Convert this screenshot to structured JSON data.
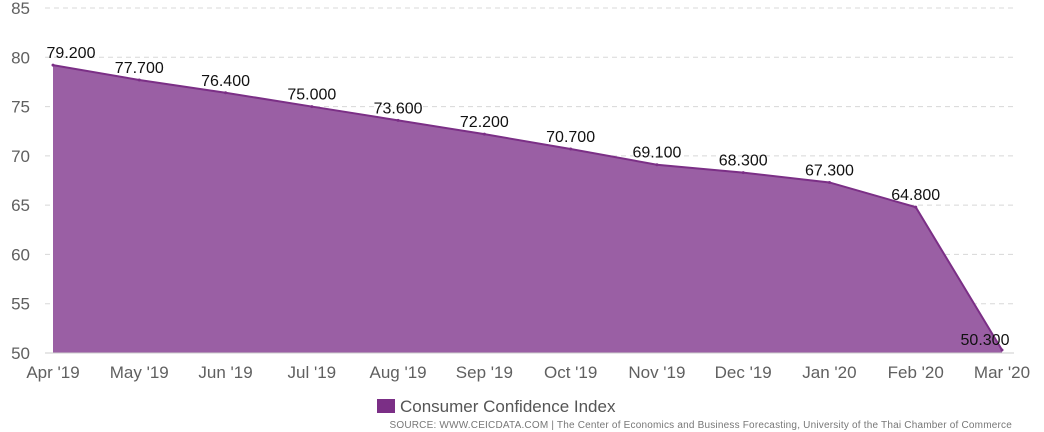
{
  "chart_data": {
    "type": "area",
    "categories": [
      "Apr '19",
      "May '19",
      "Jun '19",
      "Jul '19",
      "Aug '19",
      "Sep '19",
      "Oct '19",
      "Nov '19",
      "Dec '19",
      "Jan '20",
      "Feb '20",
      "Mar '20"
    ],
    "series": [
      {
        "name": "Consumer Confidence Index",
        "values": [
          79.2,
          77.7,
          76.4,
          75.0,
          73.6,
          72.2,
          70.7,
          69.1,
          68.3,
          67.3,
          64.8,
          50.3
        ],
        "labels": [
          "79.200",
          "77.700",
          "76.400",
          "75.000",
          "73.600",
          "72.200",
          "70.700",
          "69.100",
          "68.300",
          "67.300",
          "64.800",
          "50.300"
        ]
      }
    ],
    "y_ticks": [
      "50",
      "55",
      "60",
      "65",
      "70",
      "75",
      "80",
      "85"
    ],
    "ylim": [
      50,
      85
    ],
    "grid": true,
    "legend_position": "bottom-center",
    "colors": {
      "area": "#9a5fa4",
      "line": "#7b2f86",
      "legend": "#7b2f86",
      "grid": "#d8d8d8"
    }
  },
  "source": "SOURCE: WWW.CEICDATA.COM | The Center of Economics and Business Forecasting, University of the Thai Chamber of Commerce"
}
